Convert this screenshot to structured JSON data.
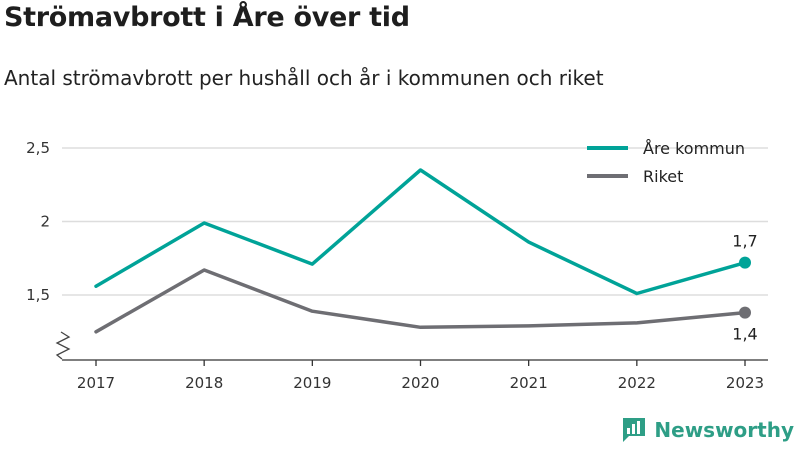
{
  "header": {
    "title": "Strömavbrott i Åre över tid",
    "subtitle": "Antal strömavbrott per hushåll och år i kommunen och riket"
  },
  "brand": {
    "name": "Newsworthy",
    "icon": "newsworthy-logo-icon",
    "color": "#2e9e86"
  },
  "chart_data": {
    "type": "line",
    "title": "Strömavbrott i Åre över tid",
    "subtitle": "Antal strömavbrott per hushåll och år i kommunen och riket",
    "xlabel": "",
    "ylabel": "",
    "categories": [
      "2017",
      "2018",
      "2019",
      "2020",
      "2021",
      "2022",
      "2023"
    ],
    "ylim": [
      1.15,
      2.6
    ],
    "yticks": [
      1.5,
      2,
      2.5
    ],
    "ytick_labels": [
      "1,5",
      "2",
      "2,5"
    ],
    "y_axis_break": true,
    "grid": "horizontal",
    "legend_position": "top-right",
    "series": [
      {
        "name": "Åre kommun",
        "color": "#00a398",
        "values": [
          1.56,
          1.99,
          1.71,
          2.35,
          1.86,
          1.51,
          1.72
        ],
        "end_label": "1,7",
        "end_label_position": "above"
      },
      {
        "name": "Riket",
        "color": "#6e6e73",
        "values": [
          1.25,
          1.67,
          1.39,
          1.28,
          1.29,
          1.31,
          1.38
        ],
        "end_label": "1,4",
        "end_label_position": "below"
      }
    ]
  }
}
